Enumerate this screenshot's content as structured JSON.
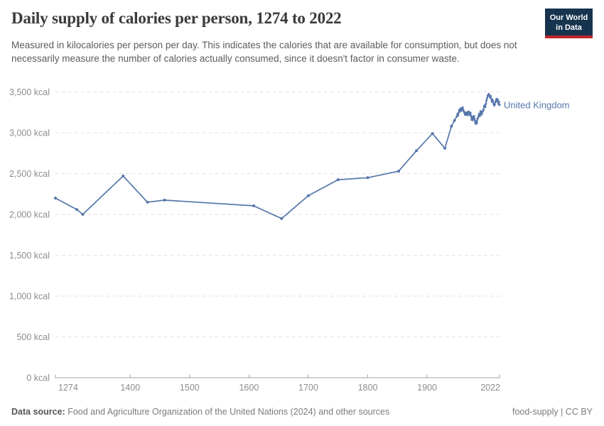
{
  "header": {
    "title": "Daily supply of calories per person, 1274 to 2022",
    "subtitle": "Measured in kilocalories per person per day. This indicates the calories that are available for consumption, but does not necessarily measure the number of calories actually consumed, since it doesn't factor in consumer waste."
  },
  "logo": {
    "line1": "Our World",
    "line2": "in Data",
    "bg_color": "#17344f",
    "bar_color": "#c0262c"
  },
  "chart_data": {
    "type": "line",
    "title": "Daily supply of calories per person, 1274 to 2022",
    "xlabel": "",
    "ylabel": "",
    "unit": "kcal",
    "xlim": [
      1274,
      2022
    ],
    "ylim": [
      0,
      3500
    ],
    "x_ticks": [
      1274,
      1400,
      1500,
      1600,
      1700,
      1800,
      1900,
      2022
    ],
    "y_ticks": [
      0,
      500,
      1000,
      1500,
      2000,
      2500,
      3000,
      3500
    ],
    "y_tick_suffix": " kcal",
    "grid": "horizontal-dashed",
    "legend_position": "end-of-line",
    "colors": {
      "line": "#5676ab",
      "grid": "#e2e2e2",
      "axis": "#a3a3a3",
      "tick_text": "#8d8d8d"
    },
    "series": [
      {
        "name": "United Kingdom",
        "color": "#5676ab",
        "points": [
          [
            1274,
            2200
          ],
          [
            1310,
            2060
          ],
          [
            1320,
            2000
          ],
          [
            1388,
            2470
          ],
          [
            1429,
            2150
          ],
          [
            1458,
            2175
          ],
          [
            1608,
            2105
          ],
          [
            1655,
            1950
          ],
          [
            1700,
            2230
          ],
          [
            1750,
            2425
          ],
          [
            1800,
            2450
          ],
          [
            1852,
            2530
          ],
          [
            1882,
            2780
          ],
          [
            1909,
            2990
          ],
          [
            1930,
            2810
          ],
          [
            1941,
            3080
          ],
          [
            1946,
            3150
          ],
          [
            1950,
            3200
          ],
          [
            1951,
            3230
          ],
          [
            1952,
            3210
          ],
          [
            1953,
            3240
          ],
          [
            1954,
            3280
          ],
          [
            1955,
            3260
          ],
          [
            1956,
            3290
          ],
          [
            1957,
            3300
          ],
          [
            1958,
            3270
          ],
          [
            1959,
            3290
          ],
          [
            1960,
            3310
          ],
          [
            1961,
            3280
          ],
          [
            1962,
            3260
          ],
          [
            1963,
            3240
          ],
          [
            1964,
            3220
          ],
          [
            1965,
            3245
          ],
          [
            1966,
            3225
          ],
          [
            1967,
            3250
          ],
          [
            1968,
            3215
          ],
          [
            1969,
            3235
          ],
          [
            1970,
            3260
          ],
          [
            1971,
            3245
          ],
          [
            1972,
            3220
          ],
          [
            1973,
            3245
          ],
          [
            1974,
            3205
          ],
          [
            1975,
            3160
          ],
          [
            1976,
            3195
          ],
          [
            1977,
            3155
          ],
          [
            1978,
            3180
          ],
          [
            1979,
            3205
          ],
          [
            1980,
            3170
          ],
          [
            1981,
            3130
          ],
          [
            1982,
            3110
          ],
          [
            1983,
            3145
          ],
          [
            1984,
            3120
          ],
          [
            1985,
            3170
          ],
          [
            1986,
            3190
          ],
          [
            1987,
            3215
          ],
          [
            1988,
            3235
          ],
          [
            1989,
            3205
          ],
          [
            1990,
            3265
          ],
          [
            1991,
            3235
          ],
          [
            1992,
            3225
          ],
          [
            1993,
            3255
          ],
          [
            1994,
            3265
          ],
          [
            1995,
            3285
          ],
          [
            1996,
            3325
          ],
          [
            1997,
            3335
          ],
          [
            1998,
            3315
          ],
          [
            1999,
            3355
          ],
          [
            2000,
            3395
          ],
          [
            2001,
            3425
          ],
          [
            2002,
            3450
          ],
          [
            2003,
            3465
          ],
          [
            2004,
            3475
          ],
          [
            2005,
            3455
          ],
          [
            2006,
            3435
          ],
          [
            2007,
            3450
          ],
          [
            2008,
            3415
          ],
          [
            2009,
            3380
          ],
          [
            2010,
            3405
          ],
          [
            2011,
            3385
          ],
          [
            2012,
            3355
          ],
          [
            2013,
            3335
          ],
          [
            2014,
            3345
          ],
          [
            2015,
            3375
          ],
          [
            2016,
            3395
          ],
          [
            2017,
            3415
          ],
          [
            2018,
            3385
          ],
          [
            2019,
            3405
          ],
          [
            2020,
            3355
          ],
          [
            2021,
            3380
          ],
          [
            2022,
            3340
          ]
        ]
      }
    ]
  },
  "footer": {
    "datasource_label": "Data source:",
    "datasource_text": " Food and Agriculture Organization of the United Nations (2024) and other sources",
    "slug": "food-supply",
    "separator": " | ",
    "license": "CC BY"
  }
}
